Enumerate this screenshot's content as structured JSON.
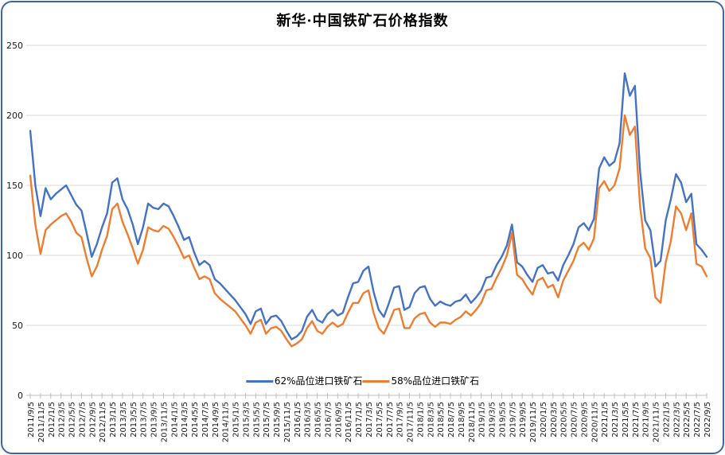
{
  "title": "新华·中国铁矿石价格指数",
  "colors": {
    "series_62": "#4472C4",
    "series_58": "#ED7D31",
    "grid": "#D9D9D9",
    "axis_line": "#BFBFBF",
    "tick_label": "#1a1a1a",
    "frame_border": "#3A66AE",
    "background": "#FFFFFF"
  },
  "chart_data": {
    "type": "line",
    "title": "新华·中国铁矿石价格指数",
    "xlabel": "",
    "ylabel": "",
    "ylim": [
      0,
      250
    ],
    "yticks": [
      0,
      50,
      100,
      150,
      200,
      250
    ],
    "grid": "horizontal",
    "legend_position": "bottom-center",
    "x_tick_every": 2,
    "x_tick_rotation": -90,
    "x": [
      "2011/9/5",
      "2011/10/5",
      "2011/11/5",
      "2011/12/5",
      "2012/1/5",
      "2012/2/5",
      "2012/3/5",
      "2012/4/5",
      "2012/5/5",
      "2012/6/5",
      "2012/7/5",
      "2012/8/5",
      "2012/9/5",
      "2012/10/5",
      "2012/11/5",
      "2012/12/5",
      "2013/1/5",
      "2013/2/5",
      "2013/3/5",
      "2013/4/5",
      "2013/5/5",
      "2013/6/5",
      "2013/7/5",
      "2013/8/5",
      "2013/9/5",
      "2013/10/5",
      "2013/11/5",
      "2013/12/5",
      "2014/1/5",
      "2014/2/5",
      "2014/3/5",
      "2014/4/5",
      "2014/5/5",
      "2014/6/5",
      "2014/7/5",
      "2014/8/5",
      "2014/9/5",
      "2014/10/5",
      "2014/11/5",
      "2014/12/5",
      "2015/1/5",
      "2015/2/5",
      "2015/3/5",
      "2015/4/5",
      "2015/5/5",
      "2015/6/5",
      "2015/7/5",
      "2015/8/5",
      "2015/9/5",
      "2015/10/5",
      "2015/11/5",
      "2015/12/5",
      "2016/1/5",
      "2016/2/5",
      "2016/3/5",
      "2016/4/5",
      "2016/5/5",
      "2016/6/5",
      "2016/7/5",
      "2016/8/5",
      "2016/9/5",
      "2016/10/5",
      "2016/11/5",
      "2016/12/5",
      "2017/1/5",
      "2017/2/5",
      "2017/3/5",
      "2017/4/5",
      "2017/5/5",
      "2017/6/5",
      "2017/7/5",
      "2017/8/5",
      "2017/9/5",
      "2017/10/5",
      "2017/11/5",
      "2017/12/5",
      "2018/1/5",
      "2018/2/5",
      "2018/3/5",
      "2018/4/5",
      "2018/5/5",
      "2018/6/5",
      "2018/7/5",
      "2018/8/5",
      "2018/9/5",
      "2018/10/5",
      "2018/11/5",
      "2018/12/5",
      "2019/1/5",
      "2019/2/5",
      "2019/3/5",
      "2019/4/5",
      "2019/5/5",
      "2019/6/5",
      "2019/7/5",
      "2019/8/5",
      "2019/9/5",
      "2019/10/5",
      "2019/11/5",
      "2019/12/5",
      "2020/1/5",
      "2020/2/5",
      "2020/3/5",
      "2020/4/5",
      "2020/5/5",
      "2020/6/5",
      "2020/7/5",
      "2020/8/5",
      "2020/9/5",
      "2020/10/5",
      "2020/11/5",
      "2020/12/5",
      "2021/1/5",
      "2021/2/5",
      "2021/3/5",
      "2021/4/5",
      "2021/5/5",
      "2021/6/5",
      "2021/7/5",
      "2021/8/5",
      "2021/9/5",
      "2021/10/5",
      "2021/11/5",
      "2021/12/5",
      "2022/1/5",
      "2022/2/5",
      "2022/3/5",
      "2022/4/5",
      "2022/5/5",
      "2022/6/5",
      "2022/7/5",
      "2022/8/5",
      "2022/9/5"
    ],
    "series": [
      {
        "name": "62%品位进口铁矿石",
        "color": "#4472C4",
        "values": [
          189,
          150,
          128,
          148,
          140,
          144,
          147,
          150,
          143,
          136,
          132,
          116,
          99,
          108,
          120,
          130,
          152,
          155,
          140,
          133,
          122,
          108,
          120,
          137,
          134,
          133,
          137,
          135,
          128,
          120,
          111,
          113,
          102,
          93,
          96,
          93,
          83,
          80,
          76,
          72,
          68,
          63,
          58,
          51,
          60,
          62,
          51,
          56,
          57,
          53,
          46,
          40,
          42,
          46,
          56,
          61,
          54,
          52,
          58,
          61,
          57,
          59,
          70,
          80,
          81,
          89,
          92,
          74,
          61,
          56,
          66,
          77,
          78,
          61,
          63,
          73,
          77,
          78,
          69,
          64,
          67,
          65,
          64,
          67,
          68,
          72,
          66,
          70,
          75,
          84,
          85,
          93,
          99,
          107,
          122,
          95,
          92,
          86,
          81,
          91,
          93,
          87,
          88,
          82,
          93,
          100,
          108,
          120,
          123,
          118,
          126,
          162,
          170,
          164,
          167,
          180,
          230,
          214,
          221,
          160,
          125,
          118,
          92,
          96,
          125,
          140,
          158,
          152,
          138,
          144,
          108,
          104,
          99
        ]
      },
      {
        "name": "58%品位进口铁矿石",
        "color": "#ED7D31",
        "values": [
          157,
          122,
          101,
          118,
          122,
          125,
          128,
          130,
          124,
          116,
          113,
          98,
          85,
          92,
          104,
          114,
          133,
          137,
          124,
          115,
          105,
          94,
          104,
          120,
          118,
          117,
          121,
          119,
          113,
          106,
          98,
          100,
          91,
          83,
          85,
          83,
          73,
          69,
          66,
          63,
          60,
          55,
          50,
          44,
          52,
          54,
          44,
          48,
          49,
          46,
          40,
          35,
          37,
          40,
          48,
          53,
          46,
          44,
          49,
          52,
          49,
          51,
          59,
          66,
          66,
          73,
          75,
          59,
          48,
          44,
          52,
          61,
          62,
          48,
          48,
          55,
          58,
          59,
          52,
          49,
          52,
          52,
          51,
          54,
          56,
          60,
          57,
          61,
          66,
          75,
          76,
          84,
          91,
          100,
          116,
          86,
          83,
          77,
          72,
          82,
          84,
          77,
          79,
          70,
          82,
          89,
          96,
          106,
          109,
          104,
          112,
          148,
          153,
          146,
          150,
          162,
          200,
          186,
          192,
          135,
          105,
          98,
          70,
          66,
          95,
          110,
          135,
          130,
          118,
          130,
          94,
          92,
          85
        ]
      }
    ]
  }
}
